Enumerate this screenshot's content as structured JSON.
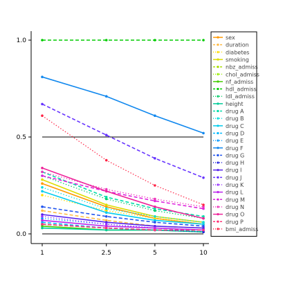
{
  "chart_data": {
    "type": "line",
    "title": "",
    "xlabel": "",
    "ylabel": "",
    "x": [
      1,
      2.5,
      5,
      10
    ],
    "x_tick_labels": [
      "1",
      "2.5",
      "5",
      "10"
    ],
    "x_scale": "log",
    "ylim": [
      0,
      1.0
    ],
    "y_ticks": [
      0.0,
      0.5,
      1.0
    ],
    "y_tick_labels": [
      "0.0",
      "0.5",
      "1.0"
    ],
    "reference_lines": [
      0.5,
      0.0
    ],
    "grid": false,
    "legend_position": "right",
    "series": [
      {
        "name": "sex",
        "color": "#ff9900",
        "dash": "solid",
        "marker": "circle",
        "values": [
          0.26,
          0.14,
          0.08,
          0.05
        ]
      },
      {
        "name": "duration",
        "color": "#ffbb44",
        "dash": "dash",
        "marker": "circle",
        "values": [
          0.12,
          0.07,
          0.04,
          0.03
        ]
      },
      {
        "name": "diabetes",
        "color": "#ffdd00",
        "dash": "dot",
        "marker": "circle",
        "values": [
          0.2,
          0.12,
          0.08,
          0.05
        ]
      },
      {
        "name": "smoking",
        "color": "#dddd00",
        "dash": "solid",
        "marker": "circle",
        "values": [
          0.28,
          0.15,
          0.09,
          0.06
        ]
      },
      {
        "name": "nbz_admiss",
        "color": "#aadd00",
        "dash": "dash",
        "marker": "circle",
        "values": [
          0.05,
          0.03,
          0.02,
          0.02
        ]
      },
      {
        "name": "chol_admiss",
        "color": "#99ee00",
        "dash": "dot",
        "marker": "circle",
        "values": [
          0.07,
          0.04,
          0.03,
          0.02
        ]
      },
      {
        "name": "nf_admiss",
        "color": "#44cc00",
        "dash": "solid",
        "marker": "circle",
        "values": [
          0.04,
          0.02,
          0.02,
          0.01
        ]
      },
      {
        "name": "hdl_admiss",
        "color": "#00cc00",
        "dash": "dash",
        "marker": "circle",
        "values": [
          1.0,
          1.0,
          1.0,
          1.0
        ]
      },
      {
        "name": "ldl_admiss",
        "color": "#00cc66",
        "dash": "dot",
        "marker": "circle",
        "values": [
          0.3,
          0.18,
          0.12,
          0.08
        ]
      },
      {
        "name": "height",
        "color": "#00cc99",
        "dash": "solid",
        "marker": "circle",
        "values": [
          0.03,
          0.02,
          0.02,
          0.01
        ]
      },
      {
        "name": "drug A",
        "color": "#00ddaa",
        "dash": "dash",
        "marker": "circle",
        "values": [
          0.32,
          0.19,
          0.13,
          0.09
        ]
      },
      {
        "name": "drug B",
        "color": "#00dddd",
        "dash": "dot",
        "marker": "circle",
        "values": [
          0.24,
          0.13,
          0.09,
          0.06
        ]
      },
      {
        "name": "drug C",
        "color": "#00ccee",
        "dash": "solid",
        "marker": "circle",
        "values": [
          0.22,
          0.11,
          0.07,
          0.05
        ]
      },
      {
        "name": "drug D",
        "color": "#00bbff",
        "dash": "dash",
        "marker": "circle",
        "values": [
          0.06,
          0.03,
          0.02,
          0.02
        ]
      },
      {
        "name": "drug E",
        "color": "#0099ff",
        "dash": "dot",
        "marker": "circle",
        "values": [
          0.08,
          0.05,
          0.03,
          0.02
        ]
      },
      {
        "name": "drug F",
        "color": "#1188ee",
        "dash": "solid",
        "marker": "circle",
        "values": [
          0.81,
          0.71,
          0.61,
          0.52
        ]
      },
      {
        "name": "drug G",
        "color": "#2255ee",
        "dash": "dash",
        "marker": "circle",
        "values": [
          0.14,
          0.09,
          0.06,
          0.04
        ]
      },
      {
        "name": "drug H",
        "color": "#2222dd",
        "dash": "dot",
        "marker": "circle",
        "values": [
          0.05,
          0.03,
          0.02,
          0.01
        ]
      },
      {
        "name": "drug I",
        "color": "#5522ee",
        "dash": "solid",
        "marker": "circle",
        "values": [
          0.1,
          0.06,
          0.04,
          0.03
        ]
      },
      {
        "name": "drug J",
        "color": "#6633ff",
        "dash": "dash",
        "marker": "circle",
        "values": [
          0.67,
          0.51,
          0.39,
          0.29
        ]
      },
      {
        "name": "drug K",
        "color": "#9933ff",
        "dash": "dot",
        "marker": "circle",
        "values": [
          0.09,
          0.05,
          0.03,
          0.02
        ]
      },
      {
        "name": "drug L",
        "color": "#bb22ee",
        "dash": "solid",
        "marker": "circle",
        "values": [
          0.07,
          0.04,
          0.03,
          0.02
        ]
      },
      {
        "name": "drug M",
        "color": "#dd22dd",
        "dash": "dash",
        "marker": "circle",
        "values": [
          0.3,
          0.22,
          0.17,
          0.13
        ]
      },
      {
        "name": "drug N",
        "color": "#ee33bb",
        "dash": "dot",
        "marker": "circle",
        "values": [
          0.32,
          0.23,
          0.18,
          0.14
        ]
      },
      {
        "name": "drug O",
        "color": "#ee2299",
        "dash": "solid",
        "marker": "circle",
        "values": [
          0.34,
          0.22,
          0.14,
          0.08
        ]
      },
      {
        "name": "drug P",
        "color": "#ff3377",
        "dash": "dash",
        "marker": "circle",
        "values": [
          0.05,
          0.03,
          0.02,
          0.02
        ]
      },
      {
        "name": "bmi_admiss",
        "color": "#ff2244",
        "dash": "dot",
        "marker": "circle",
        "values": [
          0.61,
          0.38,
          0.25,
          0.15
        ]
      }
    ]
  }
}
